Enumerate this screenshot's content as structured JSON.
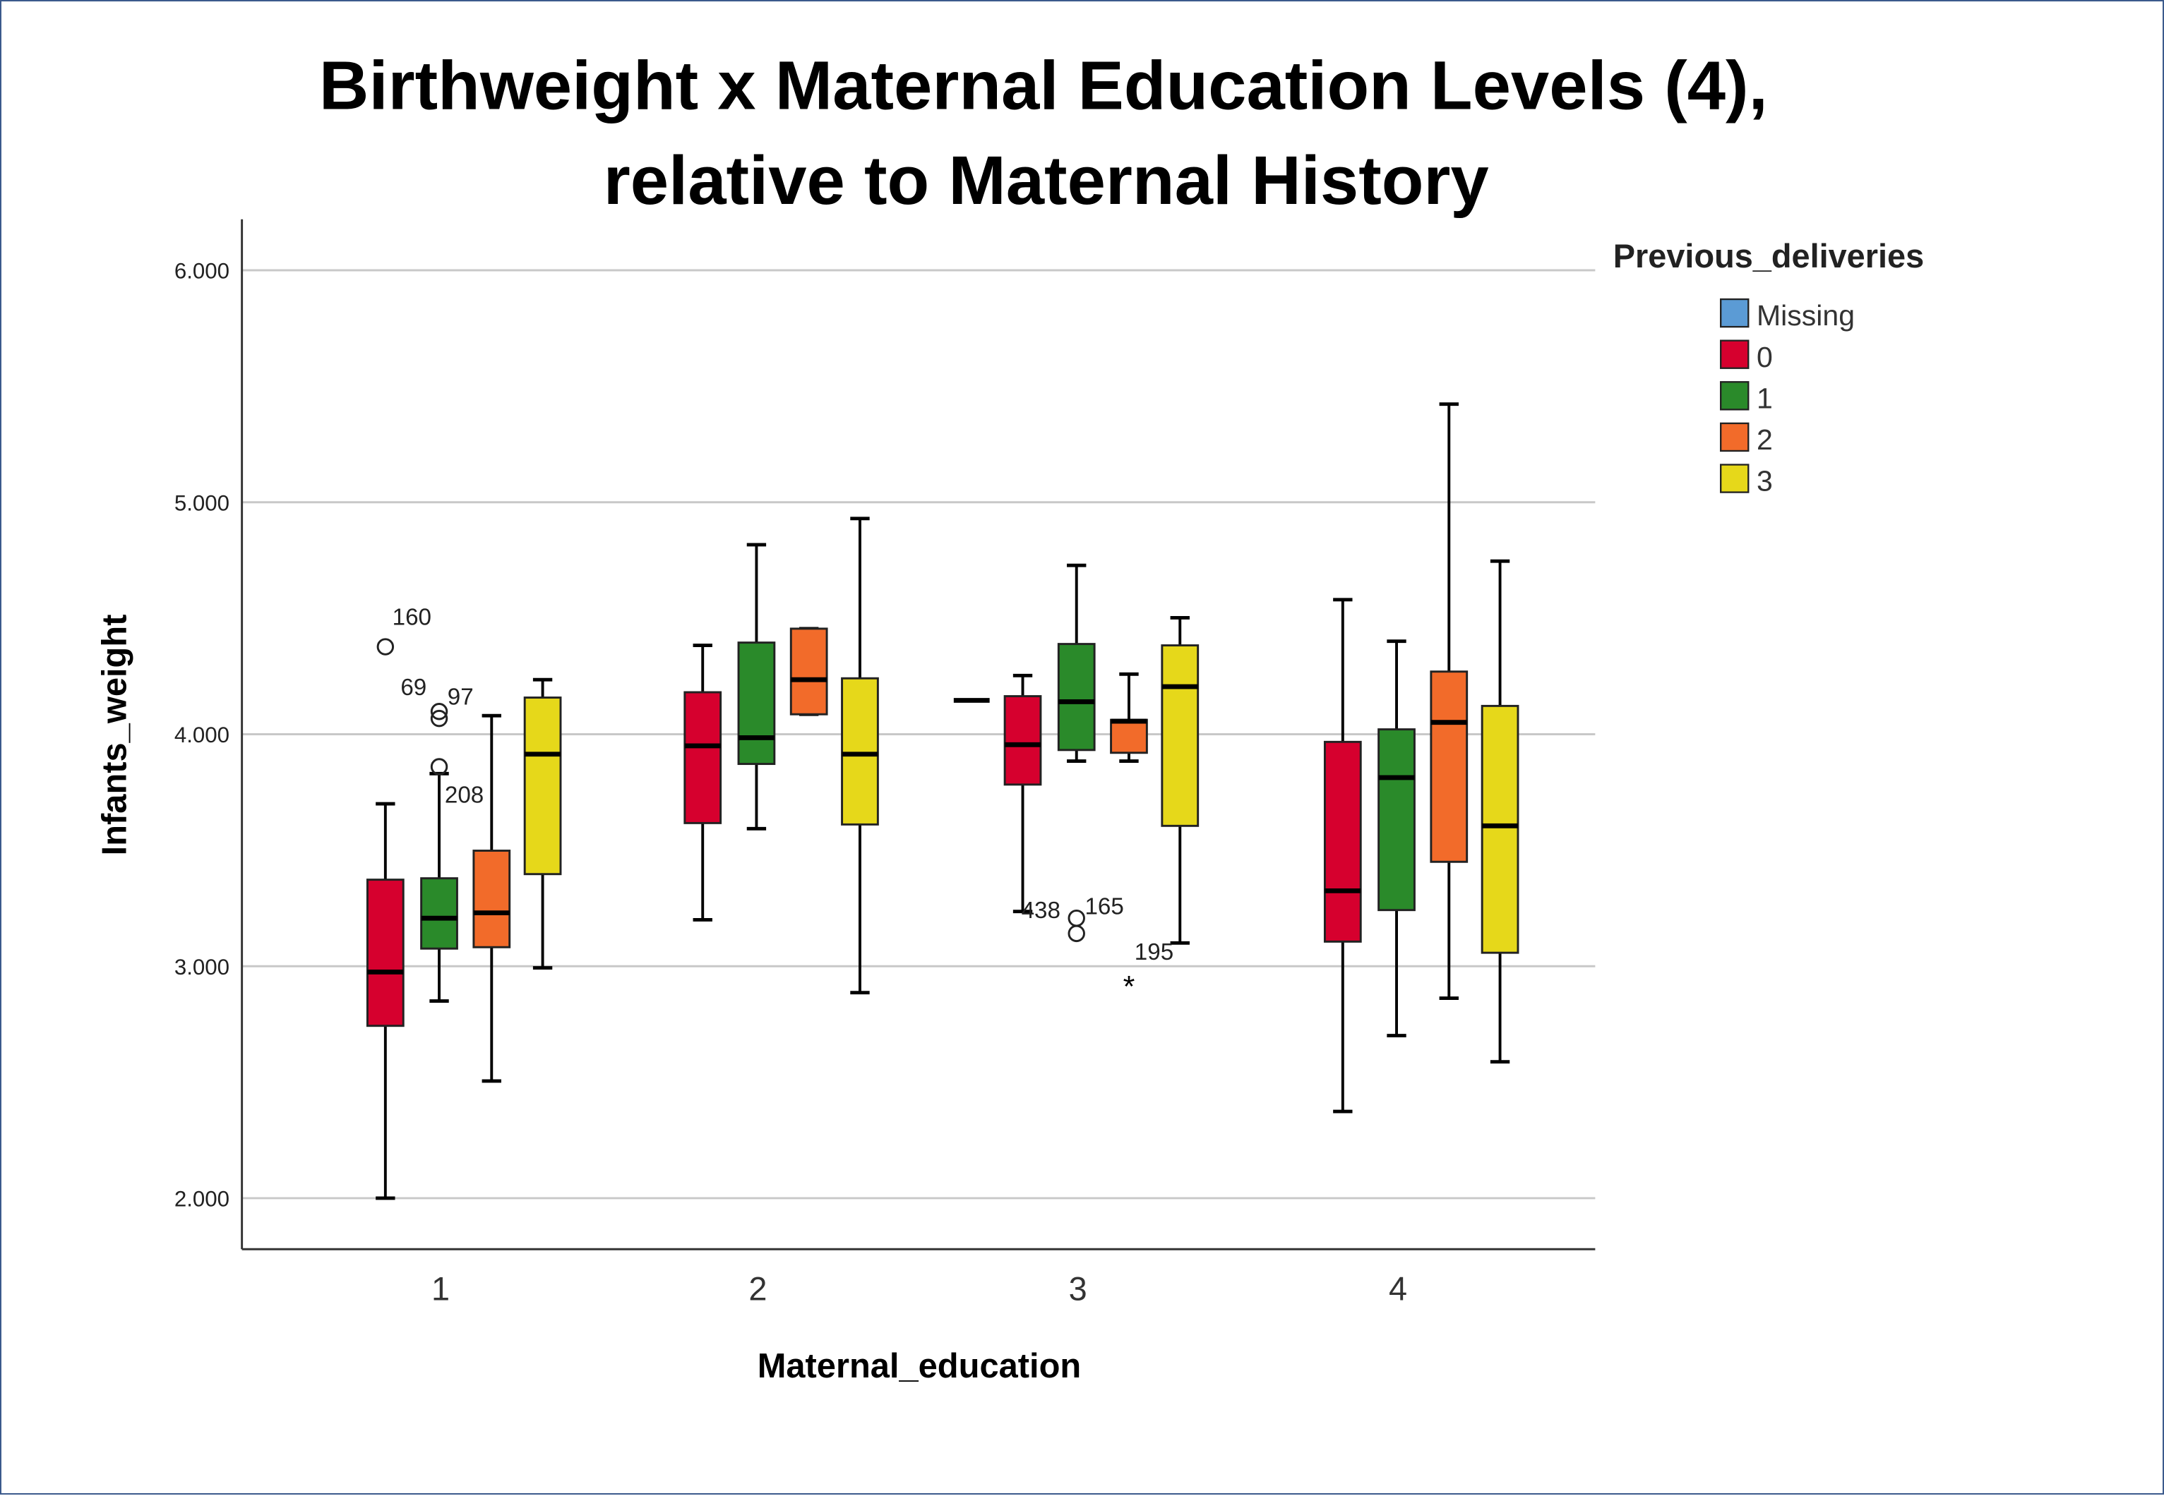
{
  "chart_data": {
    "type": "boxplot",
    "title_lines": [
      "Birthweight x Maternal Education Levels (4),",
      "relative to Maternal History"
    ],
    "xlabel": "Maternal_education",
    "ylabel": "Infants_weight",
    "categories": [
      "1",
      "2",
      "3",
      "4"
    ],
    "ylim": [
      1770,
      6200
    ],
    "yticks": [
      2000,
      3000,
      4000,
      5000,
      6000
    ],
    "ytick_labels": [
      "2.000",
      "3.000",
      "4.000",
      "5.000",
      "6.000"
    ],
    "grid": true,
    "legend": {
      "title": "Previous_deliveries",
      "placement": "right"
    },
    "series": [
      {
        "name": "Missing",
        "color": "#5b9bd5",
        "boxes": [
          null,
          null,
          {
            "min": 4146,
            "q1": 4146,
            "median": 4146,
            "q3": 4146,
            "max": 4146
          },
          null
        ]
      },
      {
        "name": "0",
        "color": "#d6002e",
        "boxes": [
          {
            "min": 2000,
            "q1": 2743,
            "median": 2975,
            "q3": 3373,
            "max": 3700
          },
          {
            "min": 3200,
            "q1": 3617,
            "median": 3950,
            "q3": 4181,
            "max": 4383
          },
          {
            "min": 3236,
            "q1": 3783,
            "median": 3955,
            "q3": 4164,
            "max": 4253
          },
          {
            "min": 2374,
            "q1": 3106,
            "median": 3325,
            "q3": 3967,
            "max": 4580
          }
        ]
      },
      {
        "name": "1",
        "color": "#2a8a2a",
        "boxes": [
          {
            "min": 2850,
            "q1": 3076,
            "median": 3207,
            "q3": 3379,
            "max": 3830
          },
          {
            "min": 3593,
            "q1": 3872,
            "median": 3985,
            "q3": 4395,
            "max": 4817
          },
          {
            "min": 3884,
            "q1": 3932,
            "median": 4140,
            "q3": 4389,
            "max": 4728
          },
          {
            "min": 2701,
            "q1": 3242,
            "median": 3813,
            "q3": 4021,
            "max": 4401
          }
        ]
      },
      {
        "name": "2",
        "color": "#f26b2a",
        "boxes": [
          {
            "min": 2505,
            "q1": 3082,
            "median": 3230,
            "q3": 3498,
            "max": 4080
          },
          {
            "min": 4086,
            "q1": 4086,
            "median": 4235,
            "q3": 4455,
            "max": 4455
          },
          {
            "min": 3884,
            "q1": 3920,
            "median": 4056,
            "q3": 4062,
            "max": 4259
          },
          {
            "min": 2862,
            "q1": 3450,
            "median": 4051,
            "q3": 4270,
            "max": 5423
          }
        ]
      },
      {
        "name": "3",
        "color": "#e6d81a",
        "boxes": [
          {
            "min": 2993,
            "q1": 3397,
            "median": 3914,
            "q3": 4158,
            "max": 4235
          },
          {
            "min": 2886,
            "q1": 3611,
            "median": 3914,
            "q3": 4241,
            "max": 4930
          },
          {
            "min": 3100,
            "q1": 3605,
            "median": 4205,
            "q3": 4383,
            "max": 4502
          },
          {
            "min": 2588,
            "q1": 3058,
            "median": 3605,
            "q3": 4122,
            "max": 4746
          }
        ]
      }
    ],
    "outliers": [
      {
        "category": "1",
        "series": "0",
        "value": 4377,
        "label": "160",
        "marker": "circle"
      },
      {
        "category": "1",
        "series": "1",
        "value": 4098,
        "label": "69",
        "marker": "circle"
      },
      {
        "category": "1",
        "series": "1",
        "value": 4068,
        "label": "97",
        "marker": "circle"
      },
      {
        "category": "1",
        "series": "1",
        "value": 3860,
        "label": "208",
        "marker": "circle"
      },
      {
        "category": "3",
        "series": "1",
        "value": 3207,
        "label": "438",
        "marker": "circle"
      },
      {
        "category": "3",
        "series": "1",
        "value": 3141,
        "label": "165",
        "marker": "circle"
      },
      {
        "category": "3",
        "series": "2",
        "value": 2939,
        "label": "195",
        "marker": "star"
      }
    ]
  }
}
